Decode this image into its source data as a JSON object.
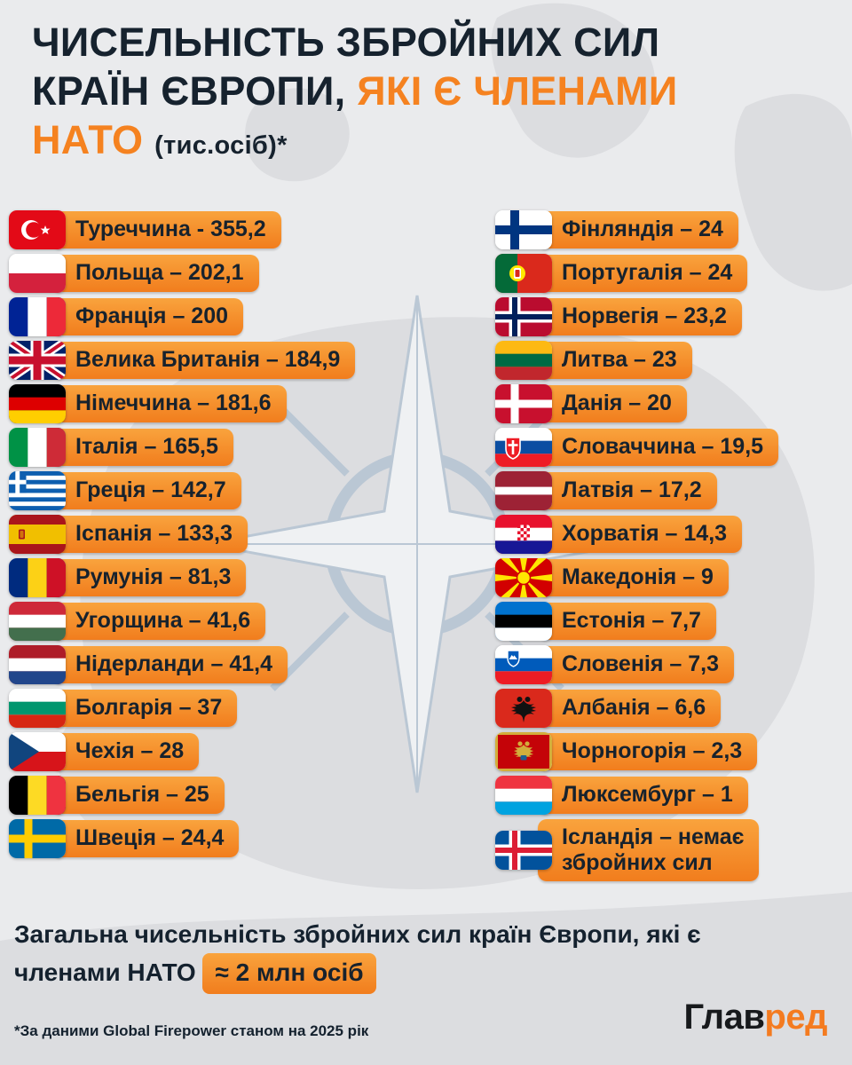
{
  "colors": {
    "background": "#eaebed",
    "accent_orange": "#f58220",
    "text_dark": "#16222e",
    "pill_gradient_top": "#f9a33d",
    "pill_gradient_bottom": "#f17d1d",
    "map_land": "#dcdde0",
    "emblem_blue": "#b7c5d3"
  },
  "header": {
    "line1": "ЧИСЕЛЬНІСТЬ ЗБРОЙНИХ СИЛ",
    "line2_dark": "КРАЇН ЄВРОПИ,",
    "line2_orange": "ЯКІ Є ЧЛЕНАМИ",
    "line3_orange": "НАТО",
    "line3_suffix": "(тис.осіб)*"
  },
  "columns": {
    "left": [
      {
        "flag": "turkey",
        "country": "Туреччина",
        "label": "Туреччина - 355,2"
      },
      {
        "flag": "poland",
        "country": "Польща",
        "label": "Польща – 202,1"
      },
      {
        "flag": "france",
        "country": "Франція",
        "label": "Франція – 200"
      },
      {
        "flag": "uk",
        "country": "Велика Британія",
        "label": "Велика Британія – 184,9"
      },
      {
        "flag": "germany",
        "country": "Німеччина",
        "label": "Німеччина – 181,6"
      },
      {
        "flag": "italy",
        "country": "Італія",
        "label": "Італія – 165,5"
      },
      {
        "flag": "greece",
        "country": "Греція",
        "label": "Греція – 142,7"
      },
      {
        "flag": "spain",
        "country": "Іспанія",
        "label": "Іспанія – 133,3"
      },
      {
        "flag": "romania",
        "country": "Румунія",
        "label": "Румунія – 81,3"
      },
      {
        "flag": "hungary",
        "country": "Угорщина",
        "label": "Угорщина – 41,6"
      },
      {
        "flag": "netherlands",
        "country": "Нідерланди",
        "label": "Нідерланди – 41,4"
      },
      {
        "flag": "bulgaria",
        "country": "Болгарія",
        "label": "Болгарія – 37"
      },
      {
        "flag": "czechia",
        "country": "Чехія",
        "label": "Чехія – 28"
      },
      {
        "flag": "belgium",
        "country": "Бельгія",
        "label": "Бельгія – 25"
      },
      {
        "flag": "sweden",
        "country": "Швеція",
        "label": "Швеція – 24,4"
      }
    ],
    "right": [
      {
        "flag": "finland",
        "country": "Фінляндія",
        "label": "Фінляндія – 24"
      },
      {
        "flag": "portugal",
        "country": "Португалія",
        "label": "Португалія – 24"
      },
      {
        "flag": "norway",
        "country": "Норвегія",
        "label": "Норвегія – 23,2"
      },
      {
        "flag": "lithuania",
        "country": "Литва",
        "label": "Литва – 23"
      },
      {
        "flag": "denmark",
        "country": "Данія",
        "label": "Данія – 20"
      },
      {
        "flag": "slovakia",
        "country": "Словаччина",
        "label": "Словаччина – 19,5"
      },
      {
        "flag": "latvia",
        "country": "Латвія",
        "label": "Латвія – 17,2"
      },
      {
        "flag": "croatia",
        "country": "Хорватія",
        "label": "Хорватія – 14,3"
      },
      {
        "flag": "macedonia",
        "country": "Македонія",
        "label": "Македонія – 9"
      },
      {
        "flag": "estonia",
        "country": "Естонія",
        "label": "Естонія – 7,7"
      },
      {
        "flag": "slovenia",
        "country": "Словенія",
        "label": "Словенія – 7,3"
      },
      {
        "flag": "albania",
        "country": "Албанія",
        "label": "Албанія – 6,6"
      },
      {
        "flag": "montenegro",
        "country": "Чорногорія",
        "label": "Чорногорія – 2,3"
      },
      {
        "flag": "luxembourg",
        "country": "Люксембург",
        "label": "Люксембург – 1"
      },
      {
        "flag": "iceland",
        "country": "Ісландія",
        "label": "Ісландія – немає\nзбройних сил"
      }
    ]
  },
  "summary": {
    "text": "Загальна чисельність збройних сил країн Європи, які є членами НАТО",
    "badge": "≈ 2 млн осіб"
  },
  "footnote": "*За даними Global Firepower станом на 2025 рік",
  "logo": {
    "part1": "Глав",
    "part2": "ред"
  },
  "chart_data": {
    "type": "table",
    "title": "Чисельність збройних сил країн Європи, які є членами НАТО (тис.осіб)",
    "unit": "тис. осіб",
    "source": "*За даними Global Firepower станом на 2025 рік",
    "total_note": "Загальна чисельність ≈ 2 млн осіб",
    "rows": [
      {
        "country": "Туреччина",
        "value": 355.2
      },
      {
        "country": "Польща",
        "value": 202.1
      },
      {
        "country": "Франція",
        "value": 200
      },
      {
        "country": "Велика Британія",
        "value": 184.9
      },
      {
        "country": "Німеччина",
        "value": 181.6
      },
      {
        "country": "Італія",
        "value": 165.5
      },
      {
        "country": "Греція",
        "value": 142.7
      },
      {
        "country": "Іспанія",
        "value": 133.3
      },
      {
        "country": "Румунія",
        "value": 81.3
      },
      {
        "country": "Угорщина",
        "value": 41.6
      },
      {
        "country": "Нідерланди",
        "value": 41.4
      },
      {
        "country": "Болгарія",
        "value": 37
      },
      {
        "country": "Чехія",
        "value": 28
      },
      {
        "country": "Бельгія",
        "value": 25
      },
      {
        "country": "Швеція",
        "value": 24.4
      },
      {
        "country": "Фінляндія",
        "value": 24
      },
      {
        "country": "Португалія",
        "value": 24
      },
      {
        "country": "Норвегія",
        "value": 23.2
      },
      {
        "country": "Литва",
        "value": 23
      },
      {
        "country": "Данія",
        "value": 20
      },
      {
        "country": "Словаччина",
        "value": 19.5
      },
      {
        "country": "Латвія",
        "value": 17.2
      },
      {
        "country": "Хорватія",
        "value": 14.3
      },
      {
        "country": "Македонія",
        "value": 9
      },
      {
        "country": "Естонія",
        "value": 7.7
      },
      {
        "country": "Словенія",
        "value": 7.3
      },
      {
        "country": "Албанія",
        "value": 6.6
      },
      {
        "country": "Чорногорія",
        "value": 2.3
      },
      {
        "country": "Люксембург",
        "value": 1
      },
      {
        "country": "Ісландія",
        "value": null,
        "note": "немає збройних сил"
      }
    ]
  }
}
